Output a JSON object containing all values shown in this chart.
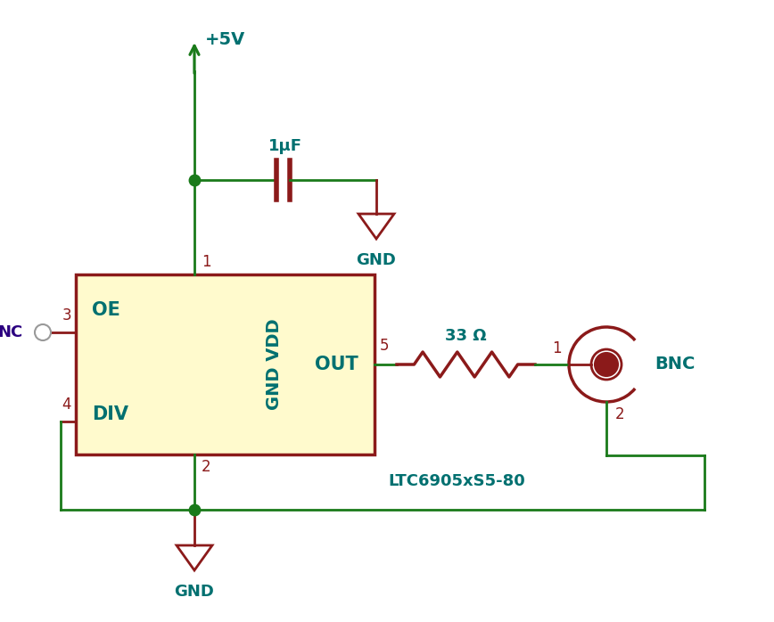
{
  "bg_color": "#ffffff",
  "dark_red": "#8B1A1A",
  "green": "#1a7a1a",
  "teal": "#007070",
  "purple": "#2B0080",
  "ic_fill": "#FFFACD",
  "ic_border": "#8B1A1A",
  "figsize": [
    8.68,
    6.98
  ],
  "dpi": 100,
  "vdd_label": "+5V",
  "gnd_label": "GND",
  "cap_label": "1μF",
  "res_label": "33 Ω",
  "ic_label": "LTC6905xS5-80",
  "oe_label": "OE",
  "div_label": "DIV",
  "out_label": "OUT",
  "gnd_vdd_label": "GND VDD",
  "bnc_label": "BNC",
  "nc_label": "NC",
  "pin1": "1",
  "pin2": "2",
  "pin3": "3",
  "pin4": "4",
  "pin5": "5",
  "pin_bnc1": "1",
  "pin_bnc2": "2",
  "lw_wire": 2.0,
  "lw_component": 2.5
}
